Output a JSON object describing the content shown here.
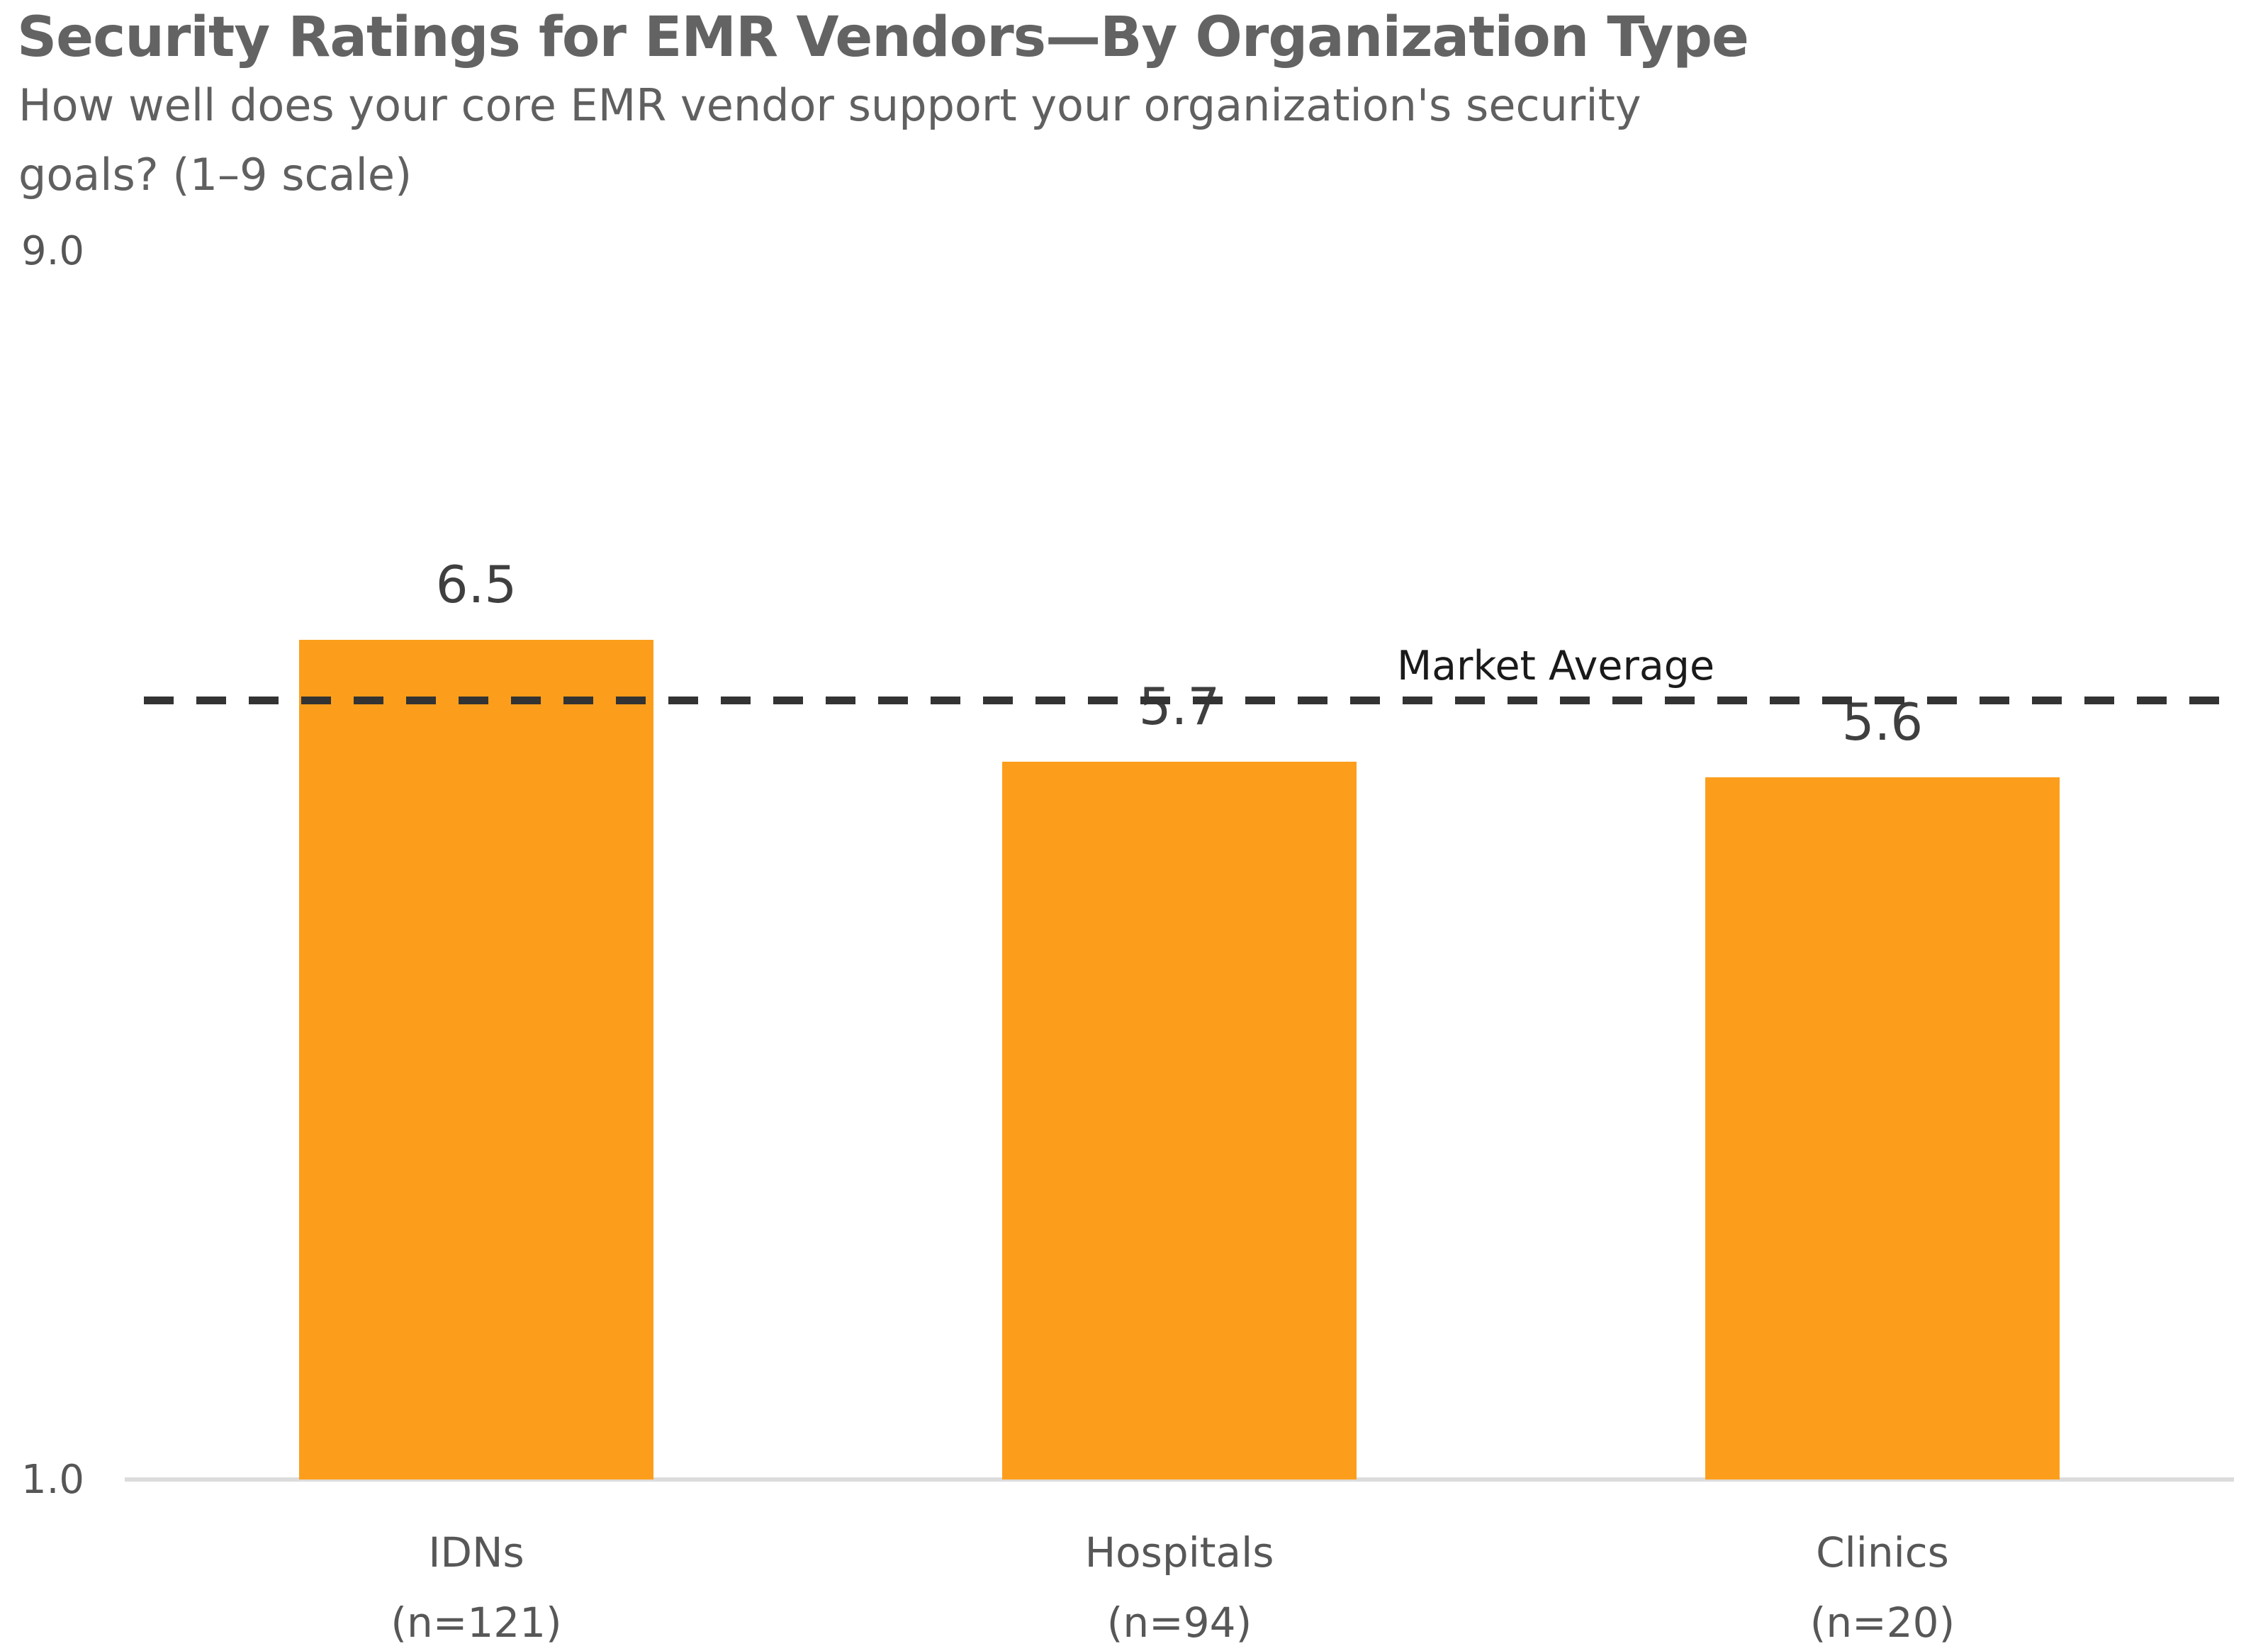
{
  "page": {
    "background": "#ffffff"
  },
  "colors": {
    "bar": "#FC9E1C",
    "title_text": "#636363",
    "value_label_text": "#3F3F3F",
    "category_text": "#575757",
    "axis_tick_text": "#565656",
    "axis_line": "#DCDCDC",
    "reference_line": "#333333",
    "reference_label_text": "#1A1A1A"
  },
  "chart_data": {
    "type": "bar",
    "title": "Security Ratings for EMR Vendors—By Organization Type",
    "subtitle_lines": [
      "How well does your core EMR vendor support your organization's security",
      "goals? (1–9 scale)"
    ],
    "categories": [
      "IDNs",
      "Hospitals",
      "Clinics"
    ],
    "category_counts": [
      "(n=121)",
      "(n=94)",
      "(n=20)"
    ],
    "values": [
      6.5,
      5.7,
      5.6
    ],
    "value_labels": [
      "6.5",
      "5.7",
      "5.6"
    ],
    "ylim": [
      1.0,
      9.0
    ],
    "ytick_labels": [
      "9.0",
      "1.0"
    ],
    "grid": "off",
    "legend": "none",
    "bar_color": "#FC9E1C",
    "reference_line": {
      "label": "Market Average",
      "value": 6.1,
      "style": "dashed"
    }
  }
}
